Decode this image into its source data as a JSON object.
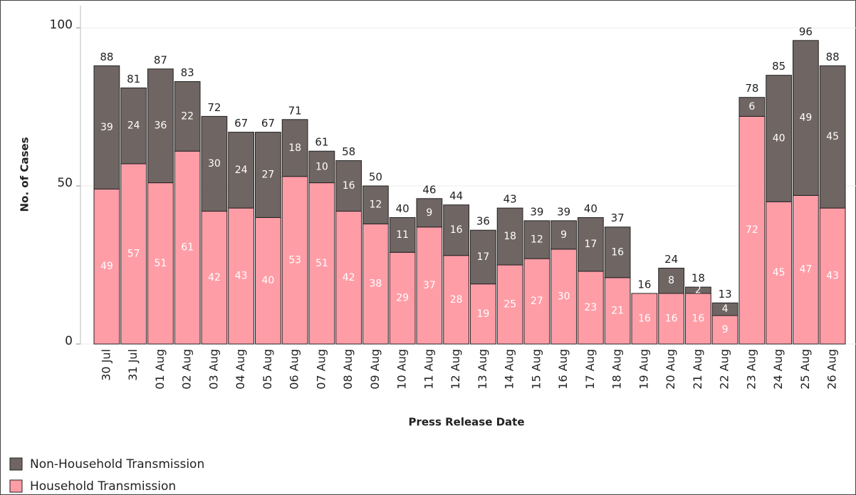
{
  "chart_data": {
    "type": "stacked_bar",
    "x_label": "Press Release Date",
    "y_label": "No. of Cases",
    "categories": [
      "30 Jul",
      "31 Jul",
      "01 Aug",
      "02 Aug",
      "03 Aug",
      "04 Aug",
      "05 Aug",
      "06 Aug",
      "07 Aug",
      "08 Aug",
      "09 Aug",
      "10 Aug",
      "11 Aug",
      "12 Aug",
      "13 Aug",
      "14 Aug",
      "15 Aug",
      "16 Aug",
      "17 Aug",
      "18 Aug",
      "19 Aug",
      "20 Aug",
      "21 Aug",
      "22 Aug",
      "23 Aug",
      "24 Aug",
      "25 Aug",
      "26 Aug"
    ],
    "series": [
      {
        "name": "Household Transmission",
        "color": "#ff9da7",
        "values": [
          49,
          57,
          51,
          61,
          42,
          43,
          40,
          53,
          51,
          42,
          38,
          29,
          37,
          28,
          19,
          25,
          27,
          30,
          23,
          21,
          16,
          16,
          16,
          9,
          72,
          45,
          47,
          43
        ]
      },
      {
        "name": "Non-Household Transmission",
        "color": "#6f6563",
        "values": [
          39,
          24,
          36,
          22,
          30,
          24,
          27,
          18,
          10,
          16,
          12,
          11,
          9,
          16,
          17,
          18,
          12,
          9,
          17,
          16,
          0,
          8,
          2,
          4,
          6,
          40,
          49,
          45
        ]
      }
    ],
    "totals": [
      88,
      81,
      87,
      83,
      72,
      67,
      67,
      71,
      61,
      58,
      50,
      40,
      46,
      44,
      36,
      43,
      39,
      39,
      40,
      37,
      16,
      24,
      18,
      13,
      78,
      85,
      96,
      88
    ],
    "ylim": [
      0,
      107
    ],
    "yticks": [
      0,
      50,
      100
    ],
    "grid": true
  }
}
